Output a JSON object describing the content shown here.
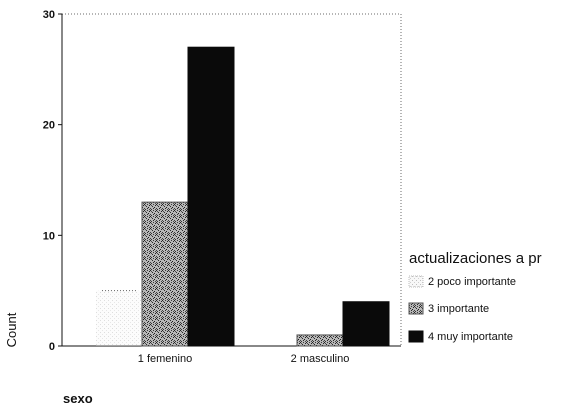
{
  "chart_data": {
    "type": "bar",
    "title": "",
    "xlabel": "sexo",
    "ylabel": "Count",
    "categories": [
      "1 femenino",
      "2 masculino"
    ],
    "series": [
      {
        "name": "2 poco importante",
        "values": [
          5,
          0
        ],
        "pattern": "light-dotted",
        "color": "#f2f2f2"
      },
      {
        "name": "3 importante",
        "values": [
          13,
          1
        ],
        "pattern": "dense-noise",
        "color": "#9a9a9a"
      },
      {
        "name": "4 muy importante",
        "values": [
          27,
          4
        ],
        "pattern": "solid",
        "color": "#0a0a0a"
      }
    ],
    "ylim": [
      0,
      30
    ],
    "yticks": [
      "0",
      "10",
      "20",
      "30"
    ],
    "legend": {
      "title": "actualizaciones a pr",
      "position": "right"
    },
    "grid": false
  }
}
